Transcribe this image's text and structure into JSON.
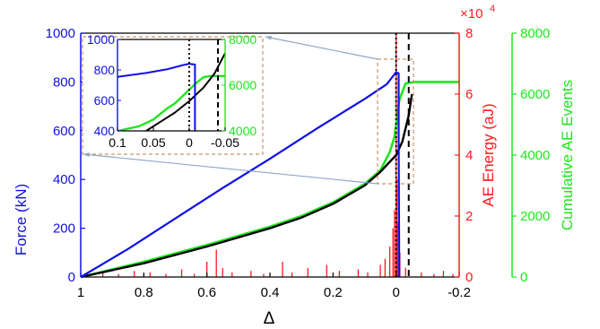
{
  "colors": {
    "force": "#1010e6",
    "energy": "#ff1a1a",
    "events": "#1ee61e",
    "fit": "#000000",
    "inset_box": "#c8956b",
    "leader": "#8fa6c7"
  },
  "chart_data": {
    "type": "line",
    "xlabel": "Δ",
    "x_reversed": true,
    "xlim": [
      1,
      -0.2
    ],
    "xticks": [
      "1",
      "0.8",
      "0.6",
      "0.4",
      "0.2",
      "0",
      "-0.2"
    ],
    "axes": {
      "force": {
        "label": "Force (kN)",
        "ylim": [
          0,
          1000
        ],
        "ticks": [
          "0",
          "200",
          "400",
          "600",
          "800",
          "1000"
        ]
      },
      "energy": {
        "label": "AE Energy (aJ)",
        "ylim": [
          0,
          8
        ],
        "ticks": [
          "0",
          "2",
          "4",
          "6",
          "8"
        ],
        "multiplier": "×10",
        "multiplier_exp": "4"
      },
      "events": {
        "label": "Cumulative AE Events",
        "ylim": [
          0,
          8000
        ],
        "ticks": [
          "0",
          "2000",
          "4000",
          "6000",
          "8000"
        ]
      }
    },
    "series": [
      {
        "key": "force",
        "axis": "force",
        "points": [
          [
            1,
            0
          ],
          [
            0.85,
            115
          ],
          [
            0.7,
            240
          ],
          [
            0.55,
            365
          ],
          [
            0.4,
            485
          ],
          [
            0.25,
            610
          ],
          [
            0.1,
            730
          ],
          [
            0.03,
            790
          ],
          [
            0,
            840
          ],
          [
            -0.008,
            835
          ],
          [
            -0.008,
            575
          ],
          [
            -0.01,
            0
          ]
        ]
      },
      {
        "key": "events",
        "axis": "events",
        "points": [
          [
            1,
            0
          ],
          [
            0.8,
            500
          ],
          [
            0.6,
            1050
          ],
          [
            0.4,
            1650
          ],
          [
            0.3,
            2000
          ],
          [
            0.2,
            2450
          ],
          [
            0.1,
            3050
          ],
          [
            0.05,
            3500
          ],
          [
            0.02,
            4100
          ],
          [
            0.005,
            4600
          ],
          [
            0,
            5000
          ],
          [
            -0.01,
            5800
          ],
          [
            -0.03,
            6350
          ],
          [
            -0.06,
            6400
          ],
          [
            -0.2,
            6400
          ]
        ]
      },
      {
        "key": "fit",
        "axis": "events",
        "points": [
          [
            1,
            0
          ],
          [
            0.8,
            450
          ],
          [
            0.6,
            1000
          ],
          [
            0.4,
            1600
          ],
          [
            0.3,
            1950
          ],
          [
            0.2,
            2400
          ],
          [
            0.1,
            3000
          ],
          [
            0.05,
            3450
          ],
          [
            0,
            4000
          ],
          [
            -0.02,
            4450
          ],
          [
            -0.04,
            5300
          ],
          [
            -0.05,
            6000
          ]
        ]
      },
      {
        "key": "energy",
        "axis": "energy",
        "spikes": [
          [
            0.98,
            0.1
          ],
          [
            0.93,
            0.15
          ],
          [
            0.88,
            0.1
          ],
          [
            0.83,
            0.2
          ],
          [
            0.78,
            0.15
          ],
          [
            0.73,
            0.1
          ],
          [
            0.68,
            0.25
          ],
          [
            0.64,
            0.1
          ],
          [
            0.6,
            0.5
          ],
          [
            0.57,
            0.9
          ],
          [
            0.55,
            0.3
          ],
          [
            0.52,
            0.15
          ],
          [
            0.46,
            0.2
          ],
          [
            0.42,
            0.1
          ],
          [
            0.36,
            0.5
          ],
          [
            0.33,
            0.15
          ],
          [
            0.28,
            0.3
          ],
          [
            0.22,
            0.4
          ],
          [
            0.18,
            0.2
          ],
          [
            0.12,
            0.25
          ],
          [
            0.09,
            0.15
          ],
          [
            0.05,
            0.4
          ],
          [
            0.035,
            0.6
          ],
          [
            0.02,
            1.0
          ],
          [
            0.01,
            1.6
          ],
          [
            0.005,
            2.2
          ],
          [
            0,
            8.0
          ],
          [
            -0.003,
            3.2
          ],
          [
            -0.006,
            1.8
          ],
          [
            -0.012,
            0.8
          ],
          [
            -0.03,
            0.3
          ],
          [
            -0.08,
            0.15
          ],
          [
            -0.12,
            0.1
          ],
          [
            -0.15,
            0.2
          ],
          [
            -0.18,
            0.1
          ]
        ]
      }
    ],
    "vlines": [
      {
        "x": 0,
        "style": "dotted"
      },
      {
        "x": -0.04,
        "style": "dashed"
      }
    ],
    "inset": {
      "xlim": [
        0.1,
        -0.05
      ],
      "xticks": [
        "0.1",
        "0.05",
        "0",
        "-0.05"
      ],
      "left_ylim": [
        400,
        1000
      ],
      "left_ticks": [
        "400",
        "600",
        "800",
        "1000"
      ],
      "right_ylim": [
        4000,
        8000
      ],
      "right_ticks": [
        "4000",
        "6000",
        "8000"
      ]
    }
  }
}
